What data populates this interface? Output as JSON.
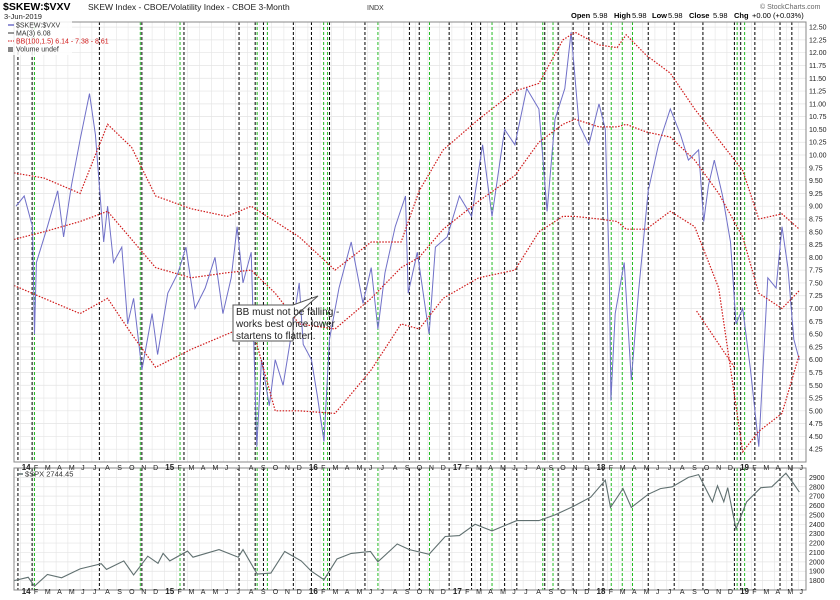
{
  "header": {
    "symbol": "$SKEW:$VXV",
    "description": "SKEW Index - CBOE/Volatility Index - CBOE 3-Month",
    "exchange": "INDX",
    "date": "3-Jun-2019",
    "open_label": "Open",
    "open": "5.98",
    "high_label": "High",
    "high": "5.98",
    "low_label": "Low",
    "low": "5.98",
    "close_label": "Close",
    "close": "5.98",
    "chg_label": "Chg",
    "chg": "+0.00 (+0.03%)",
    "credit": "© StockCharts.com"
  },
  "legend": {
    "price": "$SKEW:$VXV",
    "ma": "MA(3) 6.08",
    "bb": "BB(100,1.5) 6.14 - 7.38 - 8.61",
    "volume": "Volume undef"
  },
  "annotation": {
    "line1": "BB must not be falling -",
    "line2": "works best once lower",
    "line3": "startens to flatten."
  },
  "colors": {
    "price_line": "#7070c8",
    "bands": "#d01818",
    "spx_line": "#607070",
    "green_lines": "#22bb22",
    "black_lines": "#000000",
    "grid": "#e4e4e4"
  },
  "chart_data": [
    {
      "type": "line",
      "title": "$SKEW:$VXV",
      "ylim": [
        4.0,
        12.6
      ],
      "y_ticks": [
        "4.25",
        "4.50",
        "4.75",
        "5.00",
        "5.25",
        "5.50",
        "5.75",
        "6.00",
        "6.25",
        "6.50",
        "6.75",
        "7.00",
        "7.25",
        "7.50",
        "7.75",
        "8.00",
        "8.25",
        "8.50",
        "8.75",
        "9.00",
        "9.25",
        "9.50",
        "9.75",
        "10.00",
        "10.25",
        "10.50",
        "10.75",
        "11.00",
        "11.25",
        "11.50",
        "11.75",
        "12.00",
        "12.25",
        "12.50"
      ],
      "x_labels": [
        "14",
        "F",
        "M",
        "A",
        "M",
        "J",
        "J",
        "A",
        "S",
        "O",
        "N",
        "D",
        "15",
        "F",
        "M",
        "A",
        "M",
        "J",
        "J",
        "A",
        "S",
        "O",
        "N",
        "D",
        "16",
        "F",
        "M",
        "A",
        "M",
        "J",
        "J",
        "A",
        "S",
        "O",
        "N",
        "D",
        "17",
        "F",
        "M",
        "A",
        "M",
        "J",
        "J",
        "A",
        "S",
        "O",
        "N",
        "D",
        "18",
        "F",
        "M",
        "A",
        "M",
        "J",
        "J",
        "A",
        "S",
        "O",
        "N",
        "D",
        "19",
        "F",
        "M",
        "A",
        "M",
        "J"
      ],
      "x_range": [
        "2013-12-15",
        "2019-06-20"
      ],
      "grid": true,
      "series": [
        {
          "name": "$SKEW:$VXV",
          "x": [
            "2013-12-20",
            "2014-01-10",
            "2014-01-31",
            "2014-02-05",
            "2014-02-10",
            "2014-03-10",
            "2014-04-05",
            "2014-04-20",
            "2014-05-10",
            "2014-06-01",
            "2014-06-25",
            "2014-07-10",
            "2014-07-31",
            "2014-08-10",
            "2014-08-25",
            "2014-09-15",
            "2014-09-30",
            "2014-10-15",
            "2014-11-05",
            "2014-12-01",
            "2014-12-15",
            "2015-01-10",
            "2015-02-05",
            "2015-02-25",
            "2015-03-20",
            "2015-04-15",
            "2015-05-10",
            "2015-05-30",
            "2015-06-20",
            "2015-07-05",
            "2015-07-20",
            "2015-08-10",
            "2015-08-24",
            "2015-09-05",
            "2015-09-25",
            "2015-10-10",
            "2015-10-30",
            "2015-11-20",
            "2015-12-10",
            "2015-12-20",
            "2016-01-10",
            "2016-01-25",
            "2016-02-11",
            "2016-02-25",
            "2016-03-20",
            "2016-04-20",
            "2016-05-20",
            "2016-06-10",
            "2016-06-27",
            "2016-07-15",
            "2016-08-10",
            "2016-09-05",
            "2016-09-12",
            "2016-10-05",
            "2016-11-04",
            "2016-11-20",
            "2016-12-20",
            "2017-01-20",
            "2017-02-20",
            "2017-03-20",
            "2017-04-13",
            "2017-05-15",
            "2017-06-10",
            "2017-07-10",
            "2017-08-10",
            "2017-08-31",
            "2017-09-20",
            "2017-10-15",
            "2017-10-31",
            "2017-11-20",
            "2017-12-15",
            "2018-01-10",
            "2018-01-26",
            "2018-02-05",
            "2018-02-09",
            "2018-02-20",
            "2018-03-15",
            "2018-04-02",
            "2018-04-20",
            "2018-05-15",
            "2018-06-10",
            "2018-07-10",
            "2018-08-05",
            "2018-08-25",
            "2018-09-20",
            "2018-10-03",
            "2018-10-15",
            "2018-10-30",
            "2018-11-20",
            "2018-12-10",
            "2018-12-24",
            "2019-01-10",
            "2019-01-30",
            "2019-02-20",
            "2019-03-15",
            "2019-04-05",
            "2019-04-20",
            "2019-05-05",
            "2019-05-20",
            "2019-06-03"
          ],
          "values": [
            9.0,
            9.2,
            8.6,
            6.5,
            7.9,
            8.6,
            9.3,
            8.4,
            9.4,
            10.3,
            11.2,
            10.4,
            8.3,
            9.0,
            7.9,
            8.2,
            6.7,
            7.2,
            5.8,
            6.9,
            6.1,
            7.3,
            7.7,
            8.2,
            7.0,
            7.4,
            8.0,
            6.9,
            7.6,
            8.6,
            7.5,
            8.1,
            4.3,
            6.0,
            5.1,
            6.0,
            5.5,
            6.5,
            7.5,
            6.3,
            6.0,
            5.3,
            4.4,
            6.4,
            7.4,
            8.3,
            7.1,
            7.8,
            6.6,
            7.7,
            8.6,
            9.2,
            7.3,
            8.1,
            6.5,
            8.2,
            8.4,
            9.2,
            8.8,
            10.2,
            8.8,
            10.5,
            10.2,
            11.3,
            10.9,
            8.9,
            10.7,
            11.3,
            12.4,
            10.6,
            10.2,
            11.0,
            10.5,
            7.7,
            5.2,
            6.9,
            7.9,
            5.6,
            7.3,
            9.3,
            10.2,
            10.9,
            10.4,
            9.9,
            10.1,
            8.7,
            9.4,
            9.9,
            9.2,
            8.3,
            6.7,
            7.0,
            5.8,
            4.3,
            7.6,
            7.4,
            8.6,
            7.8,
            6.4,
            6.0
          ]
        },
        {
          "name": "BB upper",
          "x": [
            "2013-12-15",
            "2014-03-01",
            "2014-06-01",
            "2014-08-10",
            "2014-10-10",
            "2014-12-10",
            "2015-03-10",
            "2015-06-10",
            "2015-08-10",
            "2015-10-10",
            "2015-12-10",
            "2016-03-10",
            "2016-06-10",
            "2016-08-25",
            "2016-10-10",
            "2016-12-10",
            "2017-03-10",
            "2017-06-10",
            "2017-08-10",
            "2017-10-10",
            "2017-11-10",
            "2018-01-10",
            "2018-02-25",
            "2018-03-20",
            "2018-05-10",
            "2018-07-10",
            "2018-09-10",
            "2018-11-10",
            "2019-01-10",
            "2019-02-20",
            "2019-04-20",
            "2019-06-03"
          ],
          "values": [
            9.65,
            9.55,
            9.25,
            10.6,
            10.15,
            9.2,
            8.95,
            8.8,
            9.0,
            8.7,
            8.4,
            7.75,
            8.3,
            8.3,
            9.3,
            10.1,
            10.7,
            11.25,
            11.4,
            12.25,
            12.4,
            12.15,
            12.1,
            12.35,
            11.95,
            11.6,
            10.9,
            10.3,
            9.7,
            8.75,
            8.85,
            8.55
          ]
        },
        {
          "name": "BB middle",
          "x": [
            "2013-12-15",
            "2014-03-01",
            "2014-06-01",
            "2014-08-10",
            "2014-10-10",
            "2014-12-10",
            "2015-03-10",
            "2015-06-10",
            "2015-08-10",
            "2015-10-10",
            "2015-12-10",
            "2016-03-10",
            "2016-06-10",
            "2016-08-25",
            "2016-10-10",
            "2016-12-10",
            "2017-03-10",
            "2017-06-10",
            "2017-08-10",
            "2017-10-10",
            "2017-11-10",
            "2018-01-10",
            "2018-02-25",
            "2018-03-20",
            "2018-05-10",
            "2018-07-10",
            "2018-09-10",
            "2018-11-10",
            "2019-01-10",
            "2019-02-20",
            "2019-04-20",
            "2019-06-03"
          ],
          "values": [
            8.35,
            8.5,
            8.7,
            8.9,
            8.35,
            7.8,
            7.6,
            7.7,
            7.75,
            7.3,
            6.7,
            6.6,
            7.2,
            7.8,
            8.0,
            8.55,
            9.1,
            9.6,
            10.25,
            10.6,
            10.7,
            10.55,
            10.55,
            10.6,
            10.45,
            10.35,
            9.9,
            9.25,
            8.4,
            7.3,
            7.0,
            7.35
          ]
        },
        {
          "name": "BB lower",
          "x": [
            "2013-12-15",
            "2014-03-01",
            "2014-06-01",
            "2014-08-10",
            "2014-10-10",
            "2014-12-10",
            "2015-03-10",
            "2015-06-10",
            "2015-08-10",
            "2015-10-10",
            "2015-12-10",
            "2016-03-10",
            "2016-06-10",
            "2016-08-25",
            "2016-10-10",
            "2016-12-10",
            "2017-03-10",
            "2017-06-10",
            "2017-08-10",
            "2017-10-10",
            "2017-11-10",
            "2018-01-10",
            "2018-02-25",
            "2018-03-20",
            "2018-05-10",
            "2018-07-10",
            "2018-09-10",
            "2018-11-10",
            "2019-01-10",
            "2019-02-20",
            "2019-04-20",
            "2019-06-03"
          ],
          "values": [
            7.45,
            7.2,
            6.9,
            7.2,
            6.5,
            5.85,
            6.2,
            6.5,
            6.7,
            5.0,
            5.0,
            4.95,
            5.8,
            6.7,
            6.6,
            7.2,
            7.6,
            7.75,
            8.5,
            8.8,
            8.8,
            8.75,
            8.7,
            8.55,
            8.55,
            8.9,
            8.6,
            7.4,
            4.2,
            4.6,
            4.95,
            6.1
          ]
        },
        {
          "name": "BB detail",
          "x": [
            "2018-09-15",
            "2018-12-20"
          ],
          "values": [
            6.95,
            5.85
          ]
        }
      ]
    },
    {
      "type": "line",
      "title": "$SPX 2744.45",
      "ylim": [
        1700,
        3000
      ],
      "y_ticks": [
        "1800",
        "1900",
        "2000",
        "2100",
        "2200",
        "2300",
        "2400",
        "2500",
        "2600",
        "2700",
        "2800",
        "2900"
      ],
      "series": [
        {
          "name": "$SPX",
          "x": [
            "2013-12-15",
            "2014-01-20",
            "2014-02-05",
            "2014-03-10",
            "2014-04-15",
            "2014-06-01",
            "2014-07-25",
            "2014-08-07",
            "2014-09-20",
            "2014-10-15",
            "2014-11-20",
            "2014-12-16",
            "2014-12-29",
            "2015-01-15",
            "2015-03-01",
            "2015-03-15",
            "2015-05-20",
            "2015-07-08",
            "2015-07-20",
            "2015-08-25",
            "2015-09-29",
            "2015-11-03",
            "2015-12-15",
            "2016-01-10",
            "2016-02-11",
            "2016-03-15",
            "2016-04-20",
            "2016-06-08",
            "2016-06-27",
            "2016-08-15",
            "2016-09-15",
            "2016-11-04",
            "2016-12-15",
            "2017-01-20",
            "2017-03-01",
            "2017-04-13",
            "2017-06-15",
            "2017-08-10",
            "2017-09-20",
            "2017-11-05",
            "2017-12-20",
            "2018-01-26",
            "2018-02-08",
            "2018-03-12",
            "2018-04-02",
            "2018-05-15",
            "2018-06-15",
            "2018-07-15",
            "2018-08-25",
            "2018-09-20",
            "2018-10-25",
            "2018-11-07",
            "2018-11-23",
            "2018-12-03",
            "2018-12-24",
            "2019-01-20",
            "2019-02-25",
            "2019-03-25",
            "2019-04-30",
            "2019-05-20",
            "2019-06-03"
          ],
          "values": [
            1800,
            1835,
            1740,
            1865,
            1830,
            1925,
            1980,
            1920,
            2010,
            1860,
            2060,
            1985,
            2090,
            2010,
            2115,
            2050,
            2130,
            2050,
            2130,
            1870,
            1880,
            2110,
            2010,
            1900,
            1810,
            2030,
            2090,
            2110,
            2000,
            2190,
            2130,
            2080,
            2270,
            2280,
            2400,
            2330,
            2440,
            2440,
            2500,
            2590,
            2690,
            2870,
            2580,
            2780,
            2580,
            2720,
            2780,
            2800,
            2900,
            2930,
            2640,
            2810,
            2640,
            2790,
            2350,
            2640,
            2790,
            2800,
            2945,
            2830,
            2744
          ]
        }
      ]
    }
  ],
  "vertical_markers": {
    "black": [
      "2013-12-25",
      "2014-01-30",
      "2014-07-20",
      "2014-11-05",
      "2015-02-20",
      "2015-07-10",
      "2015-08-20",
      "2015-09-10",
      "2015-11-25",
      "2016-01-10",
      "2016-02-25",
      "2016-05-25",
      "2016-09-15",
      "2016-10-10",
      "2016-12-25",
      "2017-02-20",
      "2017-03-15",
      "2017-05-15",
      "2017-06-15",
      "2017-08-25",
      "2017-09-28",
      "2017-11-05",
      "2017-12-15",
      "2018-01-20",
      "2018-05-15",
      "2018-07-20",
      "2018-10-01",
      "2018-12-20",
      "2019-01-05",
      "2019-02-10",
      "2019-04-15",
      "2019-05-15"
    ],
    "green": [
      "2014-02-05",
      "2014-11-01",
      "2015-02-10",
      "2015-08-25",
      "2015-09-20",
      "2016-02-10",
      "2016-02-20",
      "2016-06-27",
      "2016-11-05",
      "2017-04-13",
      "2017-08-20",
      "2017-09-15",
      "2018-02-10",
      "2018-03-10",
      "2018-04-05",
      "2018-12-27",
      "2019-01-15"
    ]
  }
}
